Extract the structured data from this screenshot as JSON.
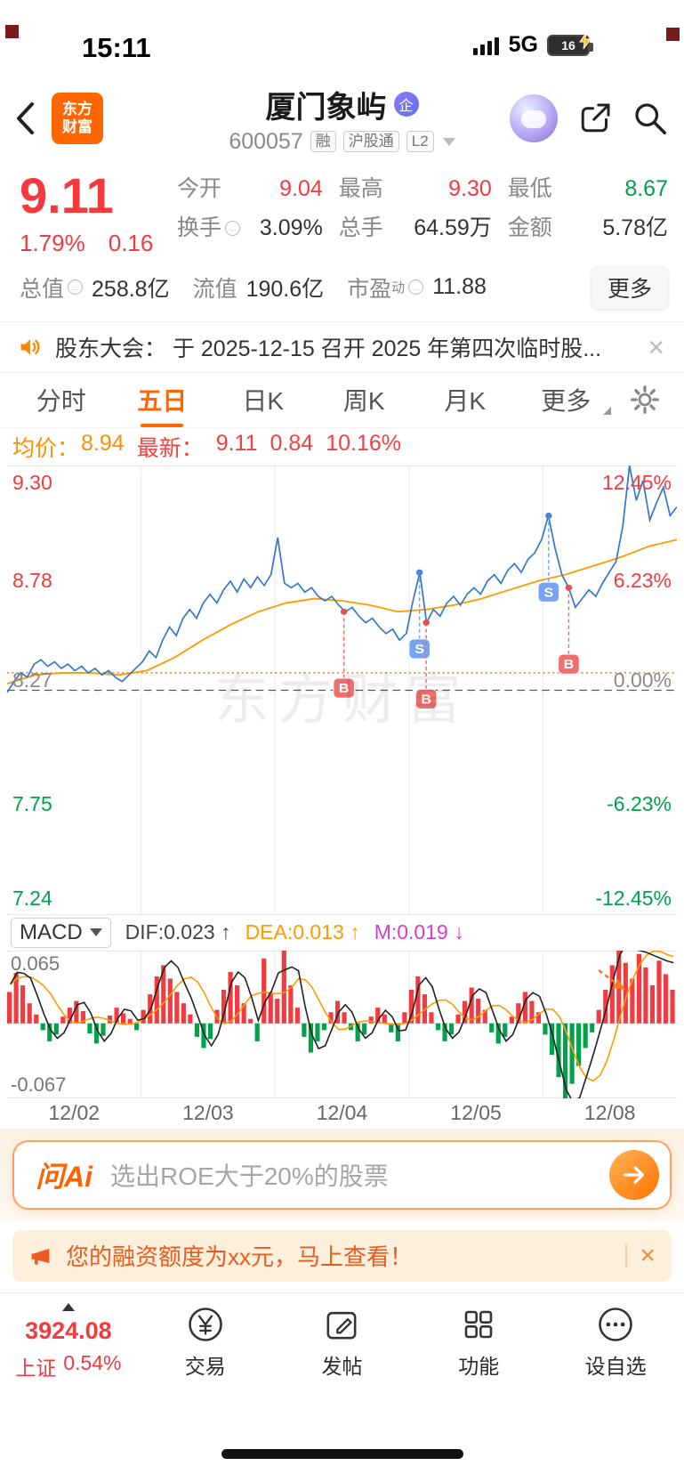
{
  "status_bar": {
    "time": "15:11",
    "network": "5G",
    "battery": "16"
  },
  "header": {
    "logo_line1": "东方",
    "logo_line2": "财富",
    "title": "厦门象屿",
    "title_badge": "企",
    "code": "600057",
    "tag_rong": "融",
    "tag_hgt": "沪股通",
    "tag_l2": "L2"
  },
  "quote": {
    "price": "9.11",
    "change_pct": "1.79%",
    "change_abs": "0.16",
    "open_label": "今开",
    "open": "9.04",
    "high_label": "最高",
    "high": "9.30",
    "low_label": "最低",
    "low": "8.67",
    "turnover_label": "换手",
    "turnover": "3.09%",
    "volume_label": "总手",
    "volume": "64.59万",
    "amount_label": "金额",
    "amount": "5.78亿",
    "mktcap_label": "总值",
    "mktcap": "258.8亿",
    "floatcap_label": "流值",
    "floatcap": "190.6亿",
    "pe_label": "市盈",
    "pe_sup": "动",
    "pe": "11.88",
    "more": "更多"
  },
  "ticker": {
    "text": "股东大会： 于 2025-12-15 召开 2025 年第四次临时股...",
    "close": "×"
  },
  "tabs": {
    "items": [
      "分时",
      "五日",
      "日K",
      "周K",
      "月K",
      "更多"
    ],
    "active": "五日"
  },
  "legend": {
    "avg_label": "均价：",
    "avg_value": "8.94",
    "latest_label": "最新：",
    "latest_price": "9.11",
    "latest_change": "0.84",
    "latest_pct": "10.16%"
  },
  "watermark": "东方财富",
  "macd_header": {
    "selector": "MACD",
    "dif": "DIF:0.023 ↑",
    "dea": "DEA:0.013 ↑",
    "m": "M:0.019 ↓"
  },
  "ai": {
    "logo": "问Ai",
    "placeholder": "选出ROE大于20%的股票"
  },
  "notice": {
    "text": "您的融资额度为xx元，马上查看！",
    "close": "×"
  },
  "nav": {
    "index_value": "3924.08",
    "index_name": "上证",
    "index_pct": "0.54%",
    "items": [
      {
        "label": "交易"
      },
      {
        "label": "发帖"
      },
      {
        "label": "功能"
      },
      {
        "label": "设自选"
      }
    ]
  },
  "colors": {
    "accent_orange": "#ff6600",
    "up_red": "#f23a3f",
    "down_green": "#00a14b",
    "price_line_blue": "#3577c9",
    "avg_line_orange": "#ff9a00",
    "macd_m_purple": "#cf3fd0"
  },
  "chart_data": [
    {
      "type": "line",
      "title": "五日分时",
      "x_dates": [
        "12/02",
        "12/03",
        "12/04",
        "12/05",
        "12/08"
      ],
      "ylim": [
        7.24,
        9.3
      ],
      "prev_close": 8.27,
      "cost_line": 8.35,
      "day_boundaries": [
        140,
        280,
        420,
        560
      ],
      "axis_left": [
        "9.30",
        "8.78",
        "8.27",
        "7.75",
        "7.24"
      ],
      "axis_right": [
        "12.45%",
        "6.23%",
        "0.00%",
        "-6.23%",
        "-12.45%"
      ],
      "series": [
        {
          "name": "价格",
          "color": "#3577c9",
          "values": [
            8.26,
            8.31,
            8.35,
            8.33,
            8.39,
            8.41,
            8.38,
            8.4,
            8.37,
            8.39,
            8.36,
            8.38,
            8.35,
            8.37,
            8.34,
            8.36,
            8.33,
            8.31,
            8.34,
            8.37,
            8.4,
            8.45,
            8.42,
            8.5,
            8.56,
            8.52,
            8.6,
            8.64,
            8.6,
            8.67,
            8.71,
            8.67,
            8.73,
            8.77,
            8.72,
            8.78,
            8.74,
            8.79,
            8.75,
            8.8,
            8.97,
            8.76,
            8.74,
            8.76,
            8.72,
            8.74,
            8.7,
            8.68,
            8.7,
            8.66,
            8.63,
            8.65,
            8.61,
            8.58,
            8.6,
            8.56,
            8.53,
            8.55,
            8.5,
            8.53,
            8.68,
            8.81,
            8.58,
            8.64,
            8.61,
            8.67,
            8.7,
            8.66,
            8.71,
            8.74,
            8.71,
            8.77,
            8.8,
            8.76,
            8.82,
            8.85,
            8.81,
            8.87,
            8.9,
            8.96,
            9.07,
            8.92,
            8.8,
            8.74,
            8.65,
            8.69,
            8.73,
            8.7,
            8.76,
            8.81,
            8.86,
            9.02,
            9.3,
            9.14,
            9.23,
            9.05,
            9.13,
            9.2,
            9.07,
            9.11
          ]
        },
        {
          "name": "均价",
          "color": "#ff9a00",
          "values": [
            8.3,
            8.34,
            8.35,
            8.35,
            8.34,
            8.36,
            8.42,
            8.5,
            8.57,
            8.63,
            8.67,
            8.69,
            8.68,
            8.66,
            8.63,
            8.64,
            8.66,
            8.69,
            8.73,
            8.77,
            8.8,
            8.84,
            8.88,
            8.93,
            8.96
          ]
        }
      ],
      "markers": [
        {
          "x": 352,
          "price": 8.63,
          "letter": "B",
          "type": "buy"
        },
        {
          "x": 431,
          "price": 8.81,
          "letter": "S",
          "type": "sell"
        },
        {
          "x": 438,
          "price": 8.58,
          "letter": "B",
          "type": "buy"
        },
        {
          "x": 566,
          "price": 9.07,
          "letter": "S",
          "type": "sell"
        },
        {
          "x": 587,
          "price": 8.74,
          "letter": "B",
          "type": "buy"
        }
      ]
    },
    {
      "type": "bar",
      "title": "MACD",
      "ylim": [
        -0.067,
        0.065
      ],
      "y_top": "0.065",
      "y_bottom": "-0.067",
      "up_color": "#f23a3f",
      "down_color": "#00a14b",
      "day_boundaries": [
        140,
        280,
        420,
        560
      ],
      "values": [
        0.028,
        0.045,
        0.034,
        0.018,
        0.008,
        -0.006,
        -0.016,
        -0.01,
        0.006,
        0.014,
        0.02,
        0.011,
        -0.009,
        -0.018,
        -0.011,
        0.007,
        0.014,
        0.009,
        0.004,
        -0.006,
        0.012,
        0.026,
        0.042,
        0.052,
        0.04,
        0.028,
        0.018,
        0.008,
        -0.012,
        -0.022,
        -0.014,
        0.012,
        0.03,
        0.046,
        0.034,
        0.018,
        0.004,
        -0.016,
        0.058,
        0.028,
        0.022,
        0.065,
        0.034,
        0.014,
        -0.012,
        -0.026,
        -0.016,
        -0.006,
        0.01,
        0.02,
        0.01,
        -0.006,
        -0.016,
        -0.01,
        0.006,
        0.014,
        0.008,
        -0.008,
        -0.016,
        0.01,
        0.03,
        0.042,
        0.026,
        0.01,
        -0.006,
        -0.016,
        -0.01,
        0.008,
        0.02,
        0.032,
        0.022,
        0.012,
        -0.008,
        -0.018,
        -0.012,
        0.006,
        0.018,
        0.028,
        0.02,
        0.01,
        -0.01,
        -0.028,
        -0.048,
        -0.067,
        -0.054,
        -0.038,
        -0.022,
        -0.008,
        0.012,
        0.03,
        0.052,
        0.065,
        0.054,
        0.04,
        0.062,
        0.05,
        0.034,
        0.056,
        0.044,
        0.03
      ]
    }
  ]
}
